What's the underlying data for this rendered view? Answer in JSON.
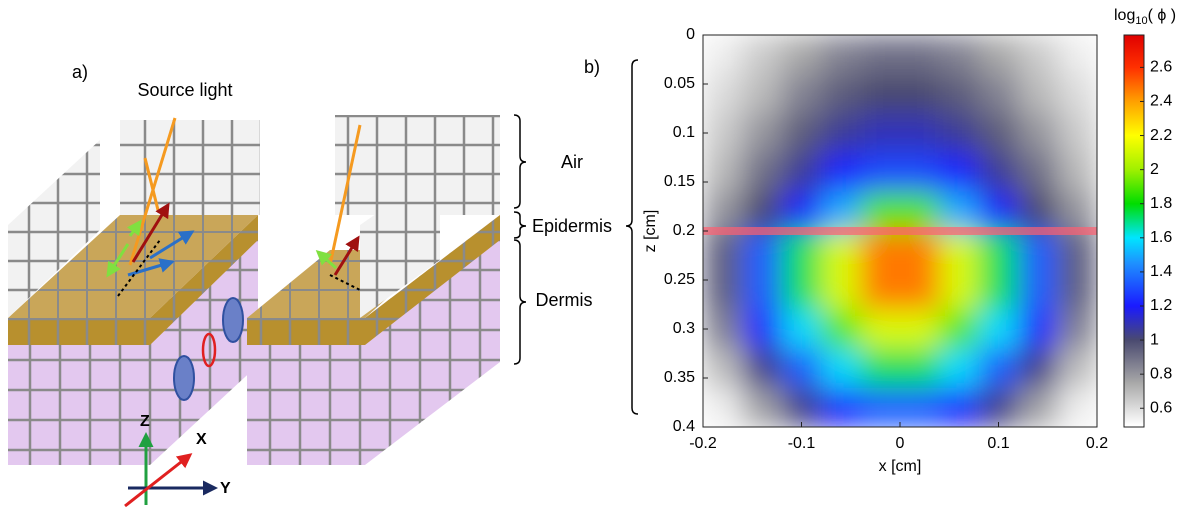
{
  "panel_a": {
    "label": "a)",
    "source": "Source light",
    "layers": [
      "Air",
      "Epidermis",
      "Dermis"
    ],
    "axes": [
      "Z",
      "X",
      "Y"
    ]
  },
  "chart_data": {
    "type": "heatmap",
    "panel_label": "b)",
    "xlabel": "x [cm]",
    "ylabel": "z [cm]",
    "colorbar_label": {
      "base": "log",
      "sub": "10",
      "arg": "( ϕ )"
    },
    "xlim": [
      -0.2,
      0.2
    ],
    "xticks": [
      -0.2,
      -0.1,
      0,
      0.1,
      0.2
    ],
    "ylim": [
      0,
      0.4
    ],
    "yticks": [
      0,
      0.05,
      0.1,
      0.15,
      0.2,
      0.25,
      0.3,
      0.35,
      0.4
    ],
    "y_inverted": true,
    "clim": [
      0.49,
      2.79
    ],
    "cticks": [
      0.6,
      0.8,
      1,
      1.2,
      1.4,
      1.6,
      1.8,
      2,
      2.2,
      2.4,
      2.6
    ],
    "colormap": [
      {
        "value": 0.5,
        "color": "#ffffff"
      },
      {
        "value": 0.75,
        "color": "#a8a8a8"
      },
      {
        "value": 1.0,
        "color": "#4a4a70"
      },
      {
        "value": 1.2,
        "color": "#1a1aff"
      },
      {
        "value": 1.45,
        "color": "#1e90ff"
      },
      {
        "value": 1.6,
        "color": "#00e5ff"
      },
      {
        "value": 1.8,
        "color": "#00dd00"
      },
      {
        "value": 2.0,
        "color": "#a0f000"
      },
      {
        "value": 2.2,
        "color": "#ffff00"
      },
      {
        "value": 2.4,
        "color": "#ffa000"
      },
      {
        "value": 2.6,
        "color": "#ff3000"
      },
      {
        "value": 2.79,
        "color": "#e00000"
      }
    ],
    "highlight_z": 0.2,
    "highlight_color": "#ff6070",
    "x": [
      -0.18,
      -0.14,
      -0.1,
      -0.06,
      -0.02,
      0.02,
      0.06,
      0.1,
      0.14,
      0.18
    ],
    "z": [
      0.02,
      0.06,
      0.1,
      0.14,
      0.18,
      0.22,
      0.26,
      0.3,
      0.34,
      0.38
    ],
    "values": [
      [
        0.55,
        0.65,
        0.75,
        0.85,
        0.9,
        0.9,
        0.85,
        0.75,
        0.65,
        0.55
      ],
      [
        0.6,
        0.7,
        0.85,
        0.95,
        1.0,
        1.0,
        0.95,
        0.85,
        0.7,
        0.6
      ],
      [
        0.65,
        0.8,
        0.95,
        1.05,
        1.1,
        1.1,
        1.05,
        0.95,
        0.8,
        0.65
      ],
      [
        0.7,
        0.9,
        1.05,
        1.2,
        1.3,
        1.3,
        1.2,
        1.05,
        0.9,
        0.7
      ],
      [
        0.8,
        1.0,
        1.2,
        1.5,
        1.9,
        1.9,
        1.5,
        1.2,
        1.0,
        0.8
      ],
      [
        0.94,
        1.34,
        1.73,
        2.12,
        2.47,
        2.47,
        2.12,
        1.73,
        1.34,
        0.94
      ],
      [
        0.94,
        1.34,
        1.73,
        2.12,
        2.47,
        2.47,
        2.12,
        1.73,
        1.34,
        0.94
      ],
      [
        0.85,
        1.23,
        1.58,
        1.9,
        2.12,
        2.12,
        1.9,
        1.58,
        1.23,
        0.85
      ],
      [
        0.69,
        1.03,
        1.34,
        1.58,
        1.73,
        1.73,
        1.58,
        1.34,
        1.03,
        0.69
      ],
      [
        0.55,
        0.77,
        1.03,
        1.23,
        1.34,
        1.34,
        1.23,
        1.03,
        0.77,
        0.55
      ]
    ]
  }
}
